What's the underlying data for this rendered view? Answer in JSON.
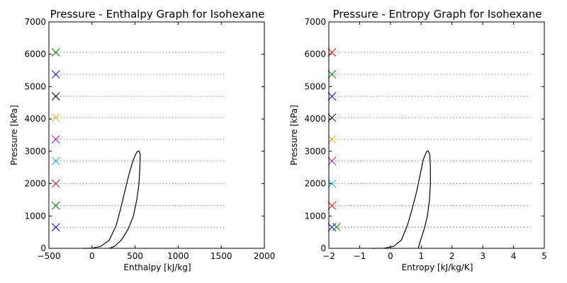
{
  "chart_data": [
    {
      "type": "line",
      "title": "Pressure - Enthalpy Graph for Isohexane",
      "xlabel": "Enthalpy [kJ/kg]",
      "ylabel": "Pressure [kPa]",
      "xlim": [
        -500,
        2000
      ],
      "ylim": [
        0,
        7000
      ],
      "xticks": [
        "−500",
        "0",
        "500",
        "1000",
        "1500",
        "2000"
      ],
      "yticks": [
        "0",
        "1000",
        "2000",
        "3000",
        "4000",
        "5000",
        "6000",
        "7000"
      ],
      "grid": false,
      "saturation_dome": {
        "name": "saturation curve",
        "color": "#000000",
        "liquid": [
          [
            -100,
            0
          ],
          [
            0,
            5
          ],
          [
            100,
            60
          ],
          [
            200,
            250
          ],
          [
            280,
            700
          ],
          [
            330,
            1200
          ],
          [
            380,
            1750
          ],
          [
            430,
            2300
          ],
          [
            480,
            2750
          ],
          [
            520,
            2980
          ],
          [
            545,
            3010
          ]
        ],
        "vapor": [
          [
            545,
            3010
          ],
          [
            560,
            2900
          ],
          [
            555,
            2500
          ],
          [
            545,
            2000
          ],
          [
            520,
            1500
          ],
          [
            480,
            1000
          ],
          [
            420,
            600
          ],
          [
            340,
            250
          ],
          [
            260,
            60
          ],
          [
            200,
            0
          ]
        ]
      },
      "isobars": [
        {
          "pressure": 650,
          "x_start": -440,
          "x_end": 1540,
          "marker_x": -420,
          "color": "#0000ff"
        },
        {
          "pressure": 1320,
          "x_start": -440,
          "x_end": 1540,
          "marker_x": -420,
          "color": "#008000"
        },
        {
          "pressure": 2000,
          "x_start": -440,
          "x_end": 1540,
          "marker_x": -420,
          "color": "#ff0000"
        },
        {
          "pressure": 2700,
          "x_start": -440,
          "x_end": 1540,
          "marker_x": -420,
          "color": "#00bfbf"
        },
        {
          "pressure": 3370,
          "x_start": -440,
          "x_end": 1540,
          "marker_x": -420,
          "color": "#bf00bf"
        },
        {
          "pressure": 4040,
          "x_start": -440,
          "x_end": 1540,
          "marker_x": -420,
          "color": "#bfbf00"
        },
        {
          "pressure": 4700,
          "x_start": -440,
          "x_end": 1540,
          "marker_x": -420,
          "color": "#000000"
        },
        {
          "pressure": 5380,
          "x_start": -440,
          "x_end": 1540,
          "marker_x": -420,
          "color": "#0000ff"
        },
        {
          "pressure": 6060,
          "x_start": -440,
          "x_end": 1540,
          "marker_x": -420,
          "color": "#008000"
        }
      ]
    },
    {
      "type": "line",
      "title": "Pressure - Entropy Graph for Isohexane",
      "xlabel": "Entropy [kJ/kg/K]",
      "ylabel": "Pressure [kPa]",
      "xlim": [
        -2,
        5
      ],
      "ylim": [
        0,
        7000
      ],
      "xticks": [
        "−2",
        "−1",
        "0",
        "1",
        "2",
        "3",
        "4",
        "5"
      ],
      "yticks": [
        "0",
        "1000",
        "2000",
        "3000",
        "4000",
        "5000",
        "6000",
        "7000"
      ],
      "grid": false,
      "saturation_dome": {
        "name": "saturation curve",
        "color": "#000000",
        "liquid": [
          [
            -0.6,
            0
          ],
          [
            -0.2,
            5
          ],
          [
            0.1,
            60
          ],
          [
            0.35,
            250
          ],
          [
            0.55,
            700
          ],
          [
            0.7,
            1200
          ],
          [
            0.85,
            1750
          ],
          [
            0.97,
            2300
          ],
          [
            1.07,
            2750
          ],
          [
            1.17,
            2980
          ],
          [
            1.22,
            3020
          ]
        ],
        "vapor": [
          [
            1.22,
            3020
          ],
          [
            1.28,
            2900
          ],
          [
            1.3,
            2500
          ],
          [
            1.3,
            2000
          ],
          [
            1.27,
            1500
          ],
          [
            1.2,
            1000
          ],
          [
            1.1,
            600
          ],
          [
            0.98,
            250
          ],
          [
            0.92,
            60
          ],
          [
            0.9,
            0
          ]
        ]
      },
      "isobars": [
        {
          "pressure": 650,
          "x_start": -1.9,
          "x_end": 4.55,
          "marker_x": -1.9,
          "color": "#0000ff"
        },
        {
          "pressure": 660,
          "x_start": -1.9,
          "x_end": 4.55,
          "marker_x": -1.75,
          "color": "#008000"
        },
        {
          "pressure": 1320,
          "x_start": -1.9,
          "x_end": 4.55,
          "marker_x": -1.9,
          "color": "#ff0000"
        },
        {
          "pressure": 2000,
          "x_start": -1.9,
          "x_end": 4.55,
          "marker_x": -1.9,
          "color": "#00bfbf"
        },
        {
          "pressure": 2700,
          "x_start": -1.9,
          "x_end": 4.55,
          "marker_x": -1.9,
          "color": "#bf00bf"
        },
        {
          "pressure": 3370,
          "x_start": -1.9,
          "x_end": 4.55,
          "marker_x": -1.9,
          "color": "#bfbf00"
        },
        {
          "pressure": 4040,
          "x_start": -1.9,
          "x_end": 4.55,
          "marker_x": -1.9,
          "color": "#000000"
        },
        {
          "pressure": 4700,
          "x_start": -1.9,
          "x_end": 4.55,
          "marker_x": -1.9,
          "color": "#0000ff"
        },
        {
          "pressure": 5380,
          "x_start": -1.9,
          "x_end": 4.55,
          "marker_x": -1.9,
          "color": "#008000"
        },
        {
          "pressure": 6060,
          "x_start": -1.9,
          "x_end": 4.55,
          "marker_x": -1.9,
          "color": "#ff0000"
        }
      ]
    }
  ]
}
